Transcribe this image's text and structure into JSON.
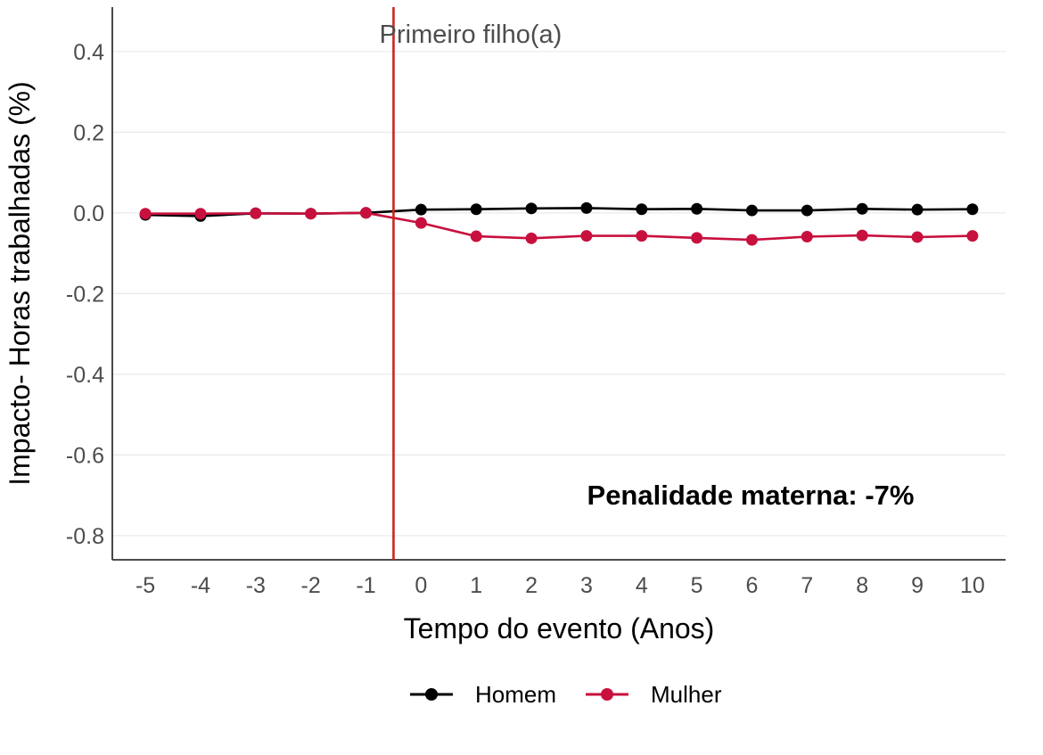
{
  "chart_data": {
    "type": "line",
    "xlabel": "Tempo do evento (Anos)",
    "ylabel": "Impacto- Horas trabalhadas  (%)",
    "x": [
      -5,
      -4,
      -3,
      -2,
      -1,
      0,
      1,
      2,
      3,
      4,
      5,
      6,
      7,
      8,
      9,
      10
    ],
    "x_tick_labels": [
      "-5",
      "-4",
      "-3",
      "-2",
      "-1",
      "0",
      "1",
      "2",
      "3",
      "4",
      "5",
      "6",
      "7",
      "8",
      "9",
      "10"
    ],
    "y_ticks": [
      0.4,
      0.2,
      0.0,
      -0.2,
      -0.4,
      -0.6,
      -0.8
    ],
    "y_tick_labels": [
      "0.4",
      "0.2",
      "0.0",
      "-0.2",
      "-0.4",
      "-0.6",
      "-0.8"
    ],
    "ylim": [
      -0.86,
      0.51
    ],
    "xlim": [
      -5.6,
      10.6
    ],
    "grid": "horizontal major",
    "legend_position": "bottom",
    "series": [
      {
        "name": "Homem",
        "color": "#000000",
        "values": [
          -0.005,
          -0.008,
          -0.001,
          -0.002,
          0.0,
          0.008,
          0.009,
          0.011,
          0.012,
          0.009,
          0.01,
          0.006,
          0.006,
          0.01,
          0.008,
          0.009
        ]
      },
      {
        "name": "Mulher",
        "color": "#c8103e",
        "values": [
          -0.002,
          -0.002,
          -0.001,
          -0.002,
          0.0,
          -0.025,
          -0.058,
          -0.063,
          -0.057,
          -0.057,
          -0.062,
          -0.067,
          -0.059,
          -0.056,
          -0.06,
          -0.057
        ]
      }
    ],
    "annotations": [
      {
        "type": "vline",
        "x": -0.5,
        "color": "#c8281e",
        "label": "Primeiro filho(a)"
      },
      {
        "type": "text",
        "text": "Penalidade materna: -7%"
      }
    ]
  }
}
